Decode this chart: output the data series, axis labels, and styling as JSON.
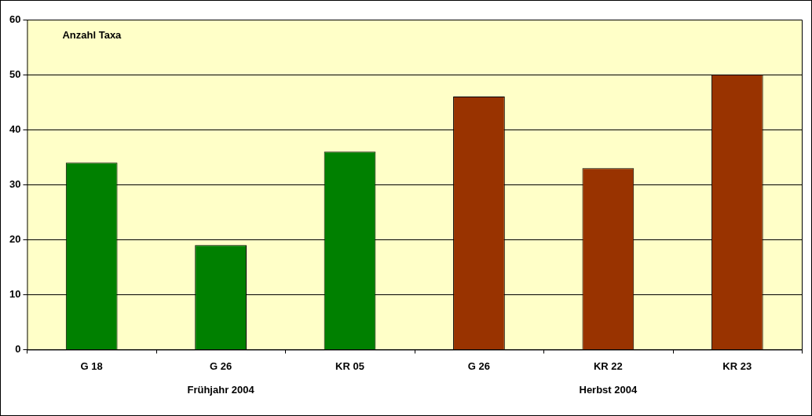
{
  "chart_data": {
    "type": "bar",
    "ylabel": "Anzahl Taxa",
    "categories": [
      "G 18",
      "G 26",
      "KR 05",
      "G 26",
      "KR 22",
      "KR 23"
    ],
    "values": [
      34,
      19,
      36,
      46,
      33,
      50
    ],
    "colors": [
      "#008000",
      "#008000",
      "#008000",
      "#993300",
      "#993300",
      "#993300"
    ],
    "annotations": [
      "Frühjahr 2004",
      "Herbst 2004"
    ],
    "ylim": [
      0,
      60
    ],
    "yticks": [
      0,
      10,
      20,
      30,
      40,
      50,
      60
    ],
    "grid": "y"
  }
}
